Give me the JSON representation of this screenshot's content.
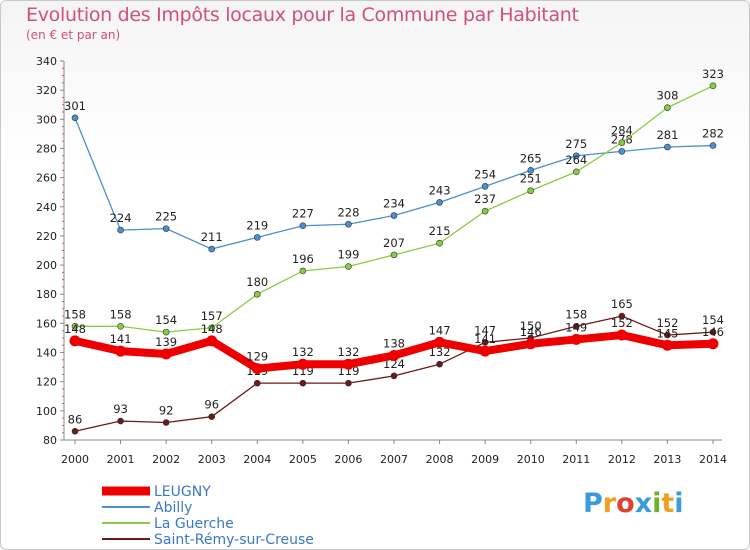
{
  "title": "Evolution des Impôts locaux pour la Commune par Habitant",
  "subtitle": "(en € et par an)",
  "logo": {
    "text": "Proxiti",
    "colors": [
      "#3a9bd9",
      "#f0a020",
      "#e04030",
      "#3a9bd9",
      "#70b030",
      "#f0a020",
      "#3a9bd9"
    ]
  },
  "chart_data": {
    "type": "line",
    "x": [
      2000,
      2001,
      2002,
      2003,
      2004,
      2005,
      2006,
      2007,
      2008,
      2009,
      2010,
      2011,
      2012,
      2013,
      2014
    ],
    "ylim": [
      80,
      340
    ],
    "yticks": [
      80,
      100,
      120,
      140,
      160,
      180,
      200,
      220,
      240,
      260,
      280,
      300,
      320,
      340
    ],
    "grid": false,
    "legend": "bottom-left",
    "series": [
      {
        "name": "LEUGNY",
        "color": "#ee0000",
        "values": [
          148,
          141,
          139,
          148,
          129,
          132,
          132,
          138,
          147,
          141,
          146,
          149,
          152,
          145,
          146
        ]
      },
      {
        "name": "Abilly",
        "color": "#4a8fd0",
        "values": [
          301,
          224,
          225,
          211,
          219,
          227,
          228,
          234,
          243,
          254,
          265,
          275,
          278,
          281,
          282
        ]
      },
      {
        "name": "La Guerche",
        "color": "#88cc44",
        "values": [
          158,
          158,
          154,
          157,
          180,
          196,
          199,
          207,
          215,
          237,
          251,
          264,
          284,
          308,
          323
        ]
      },
      {
        "name": "Saint-Rémy-sur-Creuse",
        "color": "#6b1a1a",
        "values": [
          86,
          93,
          92,
          96,
          119,
          119,
          119,
          124,
          132,
          147,
          150,
          158,
          165,
          152,
          154
        ]
      }
    ]
  }
}
